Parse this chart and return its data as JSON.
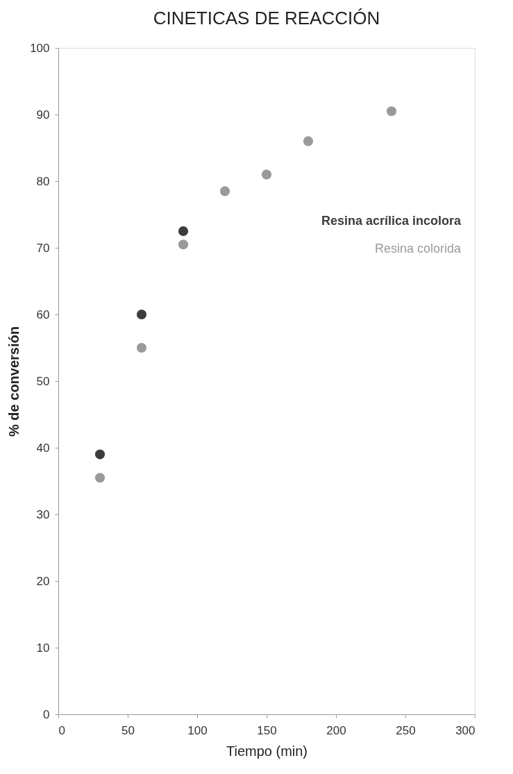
{
  "chart_data": {
    "type": "scatter",
    "title": "CINETICAS DE REACCIÓN",
    "xlabel": "Tiempo (min)",
    "ylabel": "% de conversión",
    "xlim": [
      0,
      300
    ],
    "xticks": [
      0,
      50,
      100,
      150,
      200,
      250,
      300
    ],
    "ylim": [
      0,
      100
    ],
    "yticks": [
      0,
      10,
      20,
      30,
      40,
      50,
      60,
      70,
      80,
      90,
      100
    ],
    "marker": "circle",
    "legend": "top right",
    "series": [
      {
        "name": "Resina acrílica incolora",
        "color": "#3c3c3c",
        "x": [
          30,
          60,
          90
        ],
        "values": [
          39,
          60,
          72.5
        ]
      },
      {
        "name": "Resina colorida",
        "color": "#9a9a9a",
        "x": [
          30,
          60,
          90,
          120,
          150,
          180,
          240
        ],
        "values": [
          35.5,
          55,
          70.5,
          78.5,
          81,
          86,
          90.5
        ]
      }
    ]
  }
}
